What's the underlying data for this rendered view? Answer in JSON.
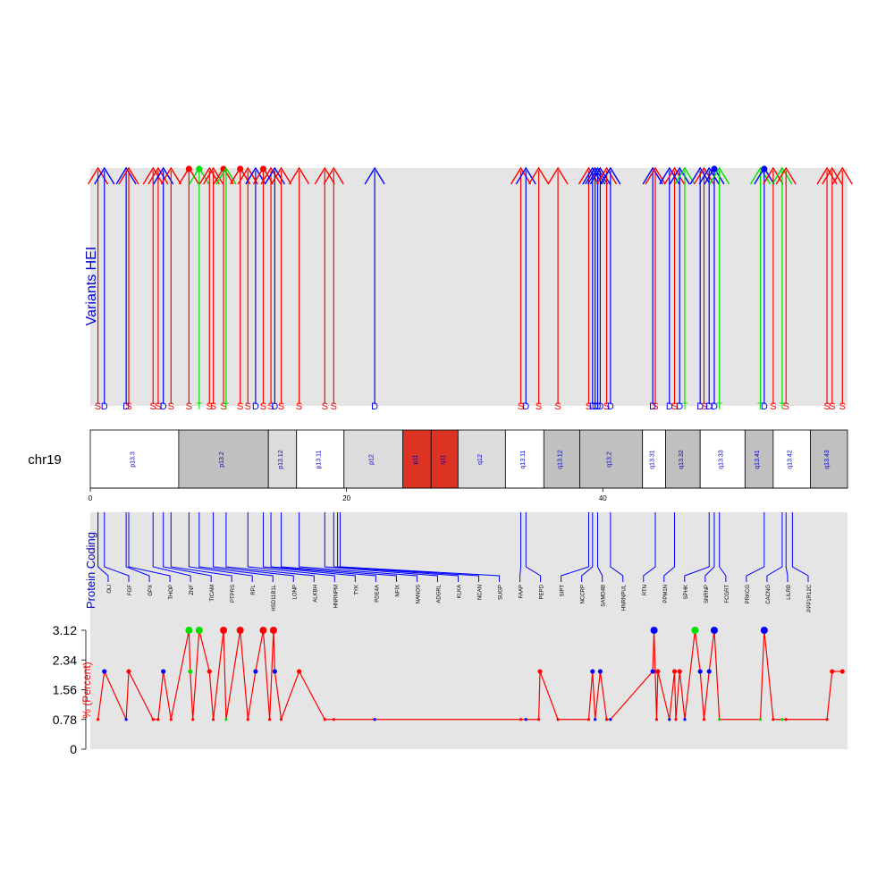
{
  "colors": {
    "S": "#ff0000",
    "D": "#0000ff",
    "T": "#00e000",
    "panel": "#e5e5e5",
    "band_dark": "#c0c0c0",
    "band_light": "#dcdcdc",
    "centromere": "#dd3322",
    "gene": "#0000ff"
  },
  "chart_data": {
    "type": "line",
    "chromosome": "chr19",
    "variants_panel": {
      "ylabel": "Variants HEI",
      "x_range": [
        0,
        59
      ],
      "variants": [
        {
          "x": 0.6,
          "label": "S",
          "type": "S"
        },
        {
          "x": 1.1,
          "label": "D",
          "type": "D"
        },
        {
          "x": 2.8,
          "label": "D",
          "type": "D"
        },
        {
          "x": 3.0,
          "label": "S",
          "type": "S"
        },
        {
          "x": 4.9,
          "label": "S",
          "type": "S"
        },
        {
          "x": 5.3,
          "label": "S",
          "type": "S"
        },
        {
          "x": 5.7,
          "label": "D",
          "type": "D"
        },
        {
          "x": 6.3,
          "label": "S",
          "type": "S"
        },
        {
          "x": 7.7,
          "label": "S",
          "type": "S"
        },
        {
          "x": 8.5,
          "label": "T",
          "type": "T"
        },
        {
          "x": 9.3,
          "label": "S",
          "type": "S"
        },
        {
          "x": 9.6,
          "label": "S",
          "type": "S"
        },
        {
          "x": 10.4,
          "label": "S",
          "type": "S"
        },
        {
          "x": 10.6,
          "label": "T",
          "type": "T"
        },
        {
          "x": 11.7,
          "label": "S",
          "type": "S"
        },
        {
          "x": 12.3,
          "label": "S",
          "type": "S"
        },
        {
          "x": 12.9,
          "label": "D",
          "type": "D"
        },
        {
          "x": 13.5,
          "label": "S",
          "type": "S"
        },
        {
          "x": 14.1,
          "label": "S",
          "type": "S"
        },
        {
          "x": 14.4,
          "label": "D",
          "type": "D"
        },
        {
          "x": 14.9,
          "label": "S",
          "type": "S"
        },
        {
          "x": 16.3,
          "label": "S",
          "type": "S"
        },
        {
          "x": 18.3,
          "label": "S",
          "type": "S"
        },
        {
          "x": 19.0,
          "label": "S",
          "type": "S"
        },
        {
          "x": 22.2,
          "label": "D",
          "type": "D"
        },
        {
          "x": 33.6,
          "label": "S",
          "type": "S"
        },
        {
          "x": 34.0,
          "label": "D",
          "type": "D"
        },
        {
          "x": 35.0,
          "label": "S",
          "type": "S"
        },
        {
          "x": 36.5,
          "label": "S",
          "type": "S"
        },
        {
          "x": 38.9,
          "label": "S",
          "type": "S"
        },
        {
          "x": 39.2,
          "label": "D",
          "type": "D"
        },
        {
          "x": 39.4,
          "label": "D",
          "type": "D"
        },
        {
          "x": 39.6,
          "label": "D",
          "type": "D"
        },
        {
          "x": 39.8,
          "label": "D",
          "type": "D"
        },
        {
          "x": 40.3,
          "label": "S",
          "type": "S"
        },
        {
          "x": 40.6,
          "label": "D",
          "type": "D"
        },
        {
          "x": 43.9,
          "label": "D",
          "type": "D"
        },
        {
          "x": 44.1,
          "label": "S",
          "type": "S"
        },
        {
          "x": 45.2,
          "label": "D",
          "type": "D"
        },
        {
          "x": 45.6,
          "label": "S",
          "type": "S"
        },
        {
          "x": 46.0,
          "label": "D",
          "type": "D"
        },
        {
          "x": 46.4,
          "label": "T",
          "type": "T"
        },
        {
          "x": 47.6,
          "label": "D",
          "type": "D"
        },
        {
          "x": 47.9,
          "label": "S",
          "type": "S"
        },
        {
          "x": 48.3,
          "label": "D",
          "type": "D"
        },
        {
          "x": 48.7,
          "label": "D",
          "type": "D"
        },
        {
          "x": 49.1,
          "label": "T",
          "type": "T"
        },
        {
          "x": 52.3,
          "label": "T",
          "type": "T"
        },
        {
          "x": 52.6,
          "label": "D",
          "type": "D"
        },
        {
          "x": 53.3,
          "label": "S",
          "type": "S"
        },
        {
          "x": 54.0,
          "label": "T",
          "type": "T"
        },
        {
          "x": 54.3,
          "label": "S",
          "type": "S"
        },
        {
          "x": 57.5,
          "label": "S",
          "type": "S"
        },
        {
          "x": 57.9,
          "label": "S",
          "type": "S"
        },
        {
          "x": 58.7,
          "label": "S",
          "type": "S"
        }
      ]
    },
    "ideogram": {
      "x_ticks": [
        0,
        20,
        40
      ],
      "bands": [
        {
          "name": "p13.3",
          "start": 0,
          "end": 6.9,
          "stain": "white"
        },
        {
          "name": "p13.2",
          "start": 6.9,
          "end": 13.9,
          "stain": "dark"
        },
        {
          "name": "p13.12",
          "start": 13.9,
          "end": 16.1,
          "stain": "light"
        },
        {
          "name": "p13.11",
          "start": 16.1,
          "end": 19.8,
          "stain": "white"
        },
        {
          "name": "p12",
          "start": 19.8,
          "end": 24.4,
          "stain": "light"
        },
        {
          "name": "p11",
          "start": 24.4,
          "end": 26.6,
          "stain": "cen"
        },
        {
          "name": "q11",
          "start": 26.6,
          "end": 28.7,
          "stain": "cen"
        },
        {
          "name": "q12",
          "start": 28.7,
          "end": 32.4,
          "stain": "light"
        },
        {
          "name": "q13.11",
          "start": 32.4,
          "end": 35.4,
          "stain": "white"
        },
        {
          "name": "q13.12",
          "start": 35.4,
          "end": 38.2,
          "stain": "dark"
        },
        {
          "name": "q13.2",
          "start": 38.2,
          "end": 43.1,
          "stain": "dark"
        },
        {
          "name": "q13.31",
          "start": 43.1,
          "end": 44.9,
          "stain": "white"
        },
        {
          "name": "q13.32",
          "start": 44.9,
          "end": 47.6,
          "stain": "dark"
        },
        {
          "name": "q13.33",
          "start": 47.6,
          "end": 51.1,
          "stain": "white"
        },
        {
          "name": "q13.41",
          "start": 51.1,
          "end": 53.3,
          "stain": "dark"
        },
        {
          "name": "q13.42",
          "start": 53.3,
          "end": 56.2,
          "stain": "white"
        },
        {
          "name": "q13.43",
          "start": 56.2,
          "end": 59.1,
          "stain": "dark"
        }
      ]
    },
    "genes_panel": {
      "ylabel": "Protein Coding",
      "genes": [
        {
          "x": 0.6,
          "name": "OLI"
        },
        {
          "x": 1.1,
          "name": "FGF"
        },
        {
          "x": 2.8,
          "name": "GPX"
        },
        {
          "x": 3.0,
          "name": "THOP"
        },
        {
          "x": 4.9,
          "name": "ZNF"
        },
        {
          "x": 5.7,
          "name": "TICAM"
        },
        {
          "x": 6.3,
          "name": "PTPRS"
        },
        {
          "x": 7.7,
          "name": "RPL"
        },
        {
          "x": 8.5,
          "name": "HSD11B1L"
        },
        {
          "x": 9.6,
          "name": "LONP"
        },
        {
          "x": 10.6,
          "name": "ALKBH"
        },
        {
          "x": 12.3,
          "name": "HNRNPM"
        },
        {
          "x": 13.5,
          "name": "TYK"
        },
        {
          "x": 14.1,
          "name": "PDE4A"
        },
        {
          "x": 14.9,
          "name": "NFIX"
        },
        {
          "x": 16.3,
          "name": "NANOS"
        },
        {
          "x": 18.3,
          "name": "ADGRL"
        },
        {
          "x": 19.0,
          "name": "KLKA"
        },
        {
          "x": 19.3,
          "name": "NCAN"
        },
        {
          "x": 19.5,
          "name": "SUGP"
        },
        {
          "x": 33.6,
          "name": "FAAP"
        },
        {
          "x": 34.0,
          "name": "PEPD"
        },
        {
          "x": 38.9,
          "name": "SIPT"
        },
        {
          "x": 39.2,
          "name": "NCCRP"
        },
        {
          "x": 39.6,
          "name": "SAMD4B"
        },
        {
          "x": 40.6,
          "name": "HNRNPUL"
        },
        {
          "x": 44.1,
          "name": "RTN"
        },
        {
          "x": 45.6,
          "name": "PPM1N"
        },
        {
          "x": 48.3,
          "name": "SPHK"
        },
        {
          "x": 48.7,
          "name": "SNRNP"
        },
        {
          "x": 49.1,
          "name": "FCGRT"
        },
        {
          "x": 52.6,
          "name": "PRKCG"
        },
        {
          "x": 54.0,
          "name": "CACNG"
        },
        {
          "x": 54.3,
          "name": "LILRB"
        },
        {
          "x": 54.8,
          "name": "PPP1R12C"
        }
      ]
    },
    "coverage_panel": {
      "ylabel": "% (Percent)",
      "y_ticks": [
        "3.12",
        "2.34",
        "1.56",
        "0.78",
        "0"
      ],
      "ylim": [
        0,
        3.12
      ],
      "line_color": "#ff0000",
      "points": [
        {
          "x": 0.6,
          "y": 0.78,
          "type": "S"
        },
        {
          "x": 1.1,
          "y": 2.04,
          "type": "D"
        },
        {
          "x": 2.8,
          "y": 0.78,
          "type": "D"
        },
        {
          "x": 3.0,
          "y": 2.04,
          "type": "S"
        },
        {
          "x": 4.9,
          "y": 0.78,
          "type": "S"
        },
        {
          "x": 5.3,
          "y": 0.78,
          "type": "S"
        },
        {
          "x": 5.7,
          "y": 2.04,
          "type": "D"
        },
        {
          "x": 6.3,
          "y": 0.78,
          "type": "S"
        },
        {
          "x": 7.7,
          "y": 3.12,
          "type": "T"
        },
        {
          "x": 7.8,
          "y": 2.04,
          "type": "T"
        },
        {
          "x": 8.0,
          "y": 0.78,
          "type": "S"
        },
        {
          "x": 8.5,
          "y": 3.12,
          "type": "T"
        },
        {
          "x": 9.3,
          "y": 2.04,
          "type": "S"
        },
        {
          "x": 9.6,
          "y": 0.78,
          "type": "S"
        },
        {
          "x": 10.4,
          "y": 3.12,
          "type": "S"
        },
        {
          "x": 10.6,
          "y": 0.78,
          "type": "T"
        },
        {
          "x": 11.7,
          "y": 3.12,
          "type": "S"
        },
        {
          "x": 12.3,
          "y": 0.78,
          "type": "S"
        },
        {
          "x": 12.9,
          "y": 2.04,
          "type": "D"
        },
        {
          "x": 13.5,
          "y": 3.12,
          "type": "S"
        },
        {
          "x": 14.0,
          "y": 0.78,
          "type": "S"
        },
        {
          "x": 14.3,
          "y": 3.12,
          "type": "S"
        },
        {
          "x": 14.4,
          "y": 2.04,
          "type": "D"
        },
        {
          "x": 14.9,
          "y": 0.78,
          "type": "S"
        },
        {
          "x": 16.3,
          "y": 2.04,
          "type": "S"
        },
        {
          "x": 18.3,
          "y": 0.78,
          "type": "S"
        },
        {
          "x": 19.0,
          "y": 0.78,
          "type": "S"
        },
        {
          "x": 22.2,
          "y": 0.78,
          "type": "D"
        },
        {
          "x": 33.6,
          "y": 0.78,
          "type": "S"
        },
        {
          "x": 34.0,
          "y": 0.78,
          "type": "D"
        },
        {
          "x": 35.0,
          "y": 0.78,
          "type": "S"
        },
        {
          "x": 35.1,
          "y": 2.04,
          "type": "S"
        },
        {
          "x": 36.5,
          "y": 0.78,
          "type": "S"
        },
        {
          "x": 38.9,
          "y": 0.78,
          "type": "S"
        },
        {
          "x": 39.2,
          "y": 2.04,
          "type": "D"
        },
        {
          "x": 39.4,
          "y": 0.78,
          "type": "D"
        },
        {
          "x": 39.8,
          "y": 2.04,
          "type": "D"
        },
        {
          "x": 40.3,
          "y": 0.78,
          "type": "S"
        },
        {
          "x": 40.6,
          "y": 0.78,
          "type": "D"
        },
        {
          "x": 43.9,
          "y": 2.04,
          "type": "D"
        },
        {
          "x": 44.0,
          "y": 3.12,
          "type": "D"
        },
        {
          "x": 44.2,
          "y": 0.78,
          "type": "S"
        },
        {
          "x": 44.3,
          "y": 2.04,
          "type": "S"
        },
        {
          "x": 45.2,
          "y": 0.78,
          "type": "D"
        },
        {
          "x": 45.6,
          "y": 2.04,
          "type": "S"
        },
        {
          "x": 45.7,
          "y": 0.78,
          "type": "S"
        },
        {
          "x": 46.0,
          "y": 2.04,
          "type": "S"
        },
        {
          "x": 46.4,
          "y": 0.78,
          "type": "D"
        },
        {
          "x": 47.2,
          "y": 3.12,
          "type": "T"
        },
        {
          "x": 47.6,
          "y": 2.04,
          "type": "D"
        },
        {
          "x": 47.9,
          "y": 0.78,
          "type": "S"
        },
        {
          "x": 48.3,
          "y": 2.04,
          "type": "D"
        },
        {
          "x": 48.7,
          "y": 3.12,
          "type": "D"
        },
        {
          "x": 49.1,
          "y": 0.78,
          "type": "T"
        },
        {
          "x": 52.3,
          "y": 0.78,
          "type": "T"
        },
        {
          "x": 52.6,
          "y": 3.12,
          "type": "D"
        },
        {
          "x": 53.3,
          "y": 0.78,
          "type": "S"
        },
        {
          "x": 54.0,
          "y": 0.78,
          "type": "T"
        },
        {
          "x": 54.3,
          "y": 0.78,
          "type": "S"
        },
        {
          "x": 57.5,
          "y": 0.78,
          "type": "S"
        },
        {
          "x": 57.9,
          "y": 2.04,
          "type": "S"
        },
        {
          "x": 58.7,
          "y": 2.04,
          "type": "S"
        }
      ]
    }
  }
}
